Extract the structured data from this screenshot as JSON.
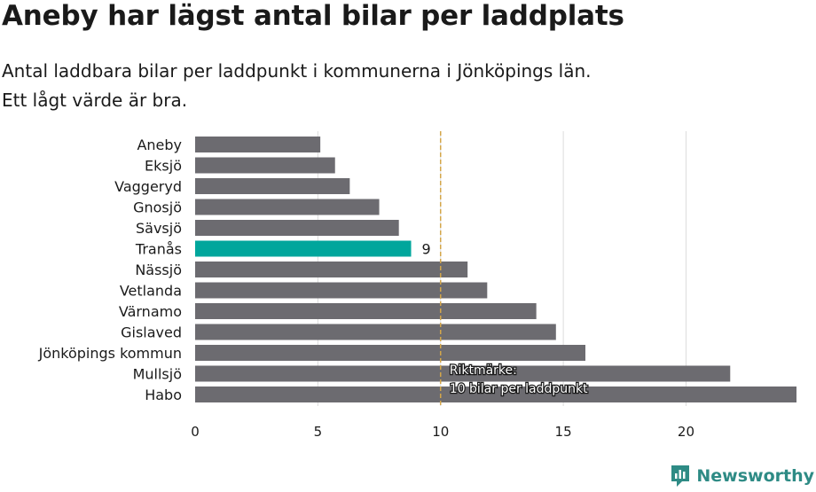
{
  "header": {
    "title": "Aneby har lägst antal bilar per laddplats",
    "subtitle_line1": "Antal laddbara bilar per laddpunkt i kommunerna i Jönköpings län.",
    "subtitle_line2": "Ett lågt värde är bra."
  },
  "brand": {
    "name": "Newsworthy",
    "color": "#2e8b85"
  },
  "chart_data": {
    "type": "bar",
    "orientation": "horizontal",
    "categories": [
      "Aneby",
      "Eksjö",
      "Vaggeryd",
      "Gnosjö",
      "Sävsjö",
      "Tranås",
      "Nässjö",
      "Vetlanda",
      "Värnamo",
      "Gislaved",
      "Jönköpings kommun",
      "Mullsjö",
      "Habo"
    ],
    "values": [
      5.1,
      5.7,
      6.3,
      7.5,
      8.3,
      8.8,
      11.1,
      11.9,
      13.9,
      14.7,
      15.9,
      21.8,
      24.5
    ],
    "highlight": {
      "category": "Tranås",
      "label": "9",
      "color": "#00a69c"
    },
    "bar_color": "#6c6b70",
    "xlim": [
      0,
      24.5
    ],
    "xticks": [
      0,
      5,
      10,
      15,
      20
    ],
    "grid": true,
    "reference_line": {
      "value": 10,
      "label_line1": "Riktmärke:",
      "label_line2": "10 bilar per laddpunkt",
      "color": "#d4a64a"
    }
  }
}
